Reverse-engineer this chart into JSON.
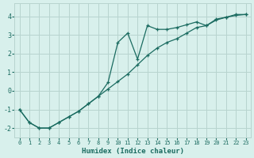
{
  "title": "",
  "xlabel": "Humidex (Indice chaleur)",
  "ylabel": "",
  "background_color": "#d8f0ec",
  "grid_color": "#b8d4cf",
  "line_color": "#1a6b60",
  "xlim": [
    -0.5,
    23.5
  ],
  "ylim": [
    -2.5,
    4.7
  ],
  "xticks": [
    0,
    1,
    2,
    3,
    4,
    5,
    6,
    7,
    8,
    9,
    10,
    11,
    12,
    13,
    14,
    15,
    16,
    17,
    18,
    19,
    20,
    21,
    22,
    23
  ],
  "yticks": [
    -2,
    -1,
    0,
    1,
    2,
    3,
    4
  ],
  "line1_x": [
    0,
    1,
    2,
    3,
    4,
    5,
    6,
    7,
    8,
    9,
    10,
    11,
    12,
    13,
    14,
    15,
    16,
    17,
    18,
    19,
    20,
    21,
    22,
    23
  ],
  "line1_y": [
    -1.0,
    -1.7,
    -2.0,
    -2.0,
    -1.7,
    -1.4,
    -1.1,
    -0.7,
    -0.3,
    0.1,
    0.5,
    0.9,
    1.4,
    1.9,
    2.3,
    2.6,
    2.8,
    3.1,
    3.4,
    3.5,
    3.8,
    3.95,
    4.05,
    4.1
  ],
  "line2_x": [
    0,
    1,
    2,
    3,
    4,
    5,
    6,
    7,
    8,
    9,
    10,
    11,
    12,
    13,
    14,
    15,
    16,
    17,
    18,
    19,
    20,
    21,
    22,
    23
  ],
  "line2_y": [
    -1.0,
    -1.7,
    -2.0,
    -2.0,
    -1.7,
    -1.4,
    -1.1,
    -0.7,
    -0.3,
    0.45,
    2.6,
    3.1,
    1.7,
    3.5,
    3.3,
    3.3,
    3.4,
    3.55,
    3.7,
    3.5,
    3.85,
    3.95,
    4.1,
    4.1
  ]
}
